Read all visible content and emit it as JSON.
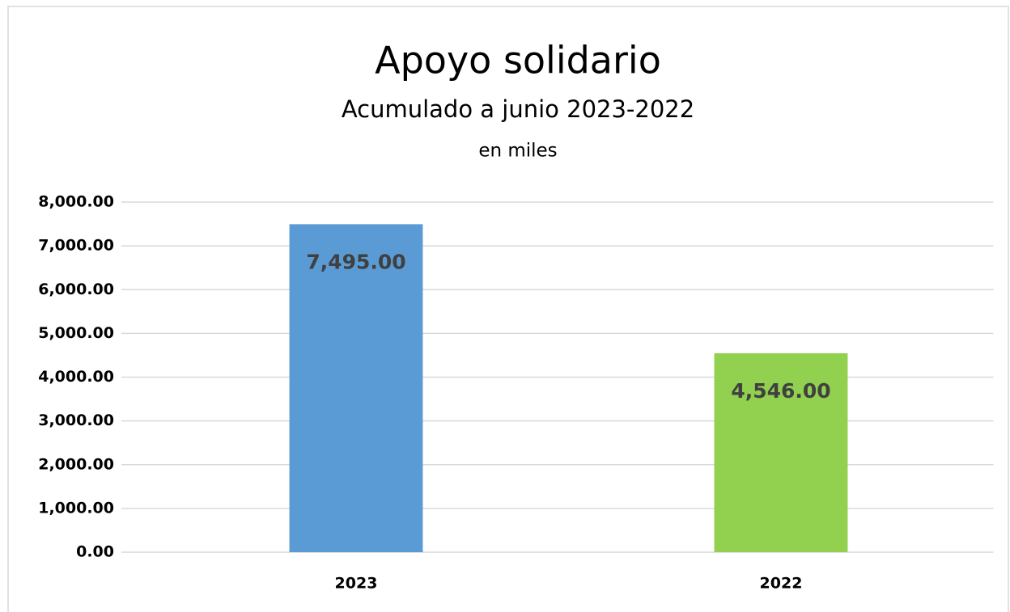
{
  "chart_data": {
    "type": "bar",
    "title": "Apoyo solidario",
    "subtitles": [
      "Acumulado a junio 2023-2022",
      "en miles"
    ],
    "categories": [
      "2023",
      "2022"
    ],
    "values": [
      7495,
      4546
    ],
    "value_labels": [
      "7,495.00",
      "4,546.00"
    ],
    "colors": [
      "#5b9bd5",
      "#92d050"
    ],
    "ylim": [
      0,
      8000
    ],
    "yticks": [
      {
        "value": 0,
        "label": "0.00"
      },
      {
        "value": 1000,
        "label": "1,000.00"
      },
      {
        "value": 2000,
        "label": "2,000.00"
      },
      {
        "value": 3000,
        "label": "3,000.00"
      },
      {
        "value": 4000,
        "label": "4,000.00"
      },
      {
        "value": 5000,
        "label": "5,000.00"
      },
      {
        "value": 6000,
        "label": "6,000.00"
      },
      {
        "value": 7000,
        "label": "7,000.00"
      },
      {
        "value": 8000,
        "label": "8,000.00"
      }
    ],
    "grid": true
  }
}
